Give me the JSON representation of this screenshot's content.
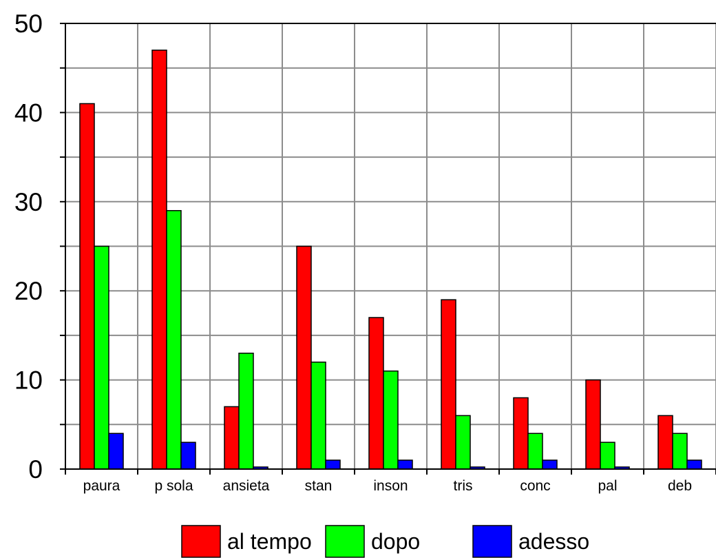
{
  "chart_data": {
    "type": "bar",
    "categories": [
      "paura",
      "p sola",
      "ansieta",
      "stan",
      "inson",
      "tris",
      "conc",
      "pal",
      "deb"
    ],
    "series": [
      {
        "name": "al tempo",
        "color": "#ff0000",
        "values": [
          41,
          47,
          7,
          25,
          17,
          19,
          8,
          10,
          6
        ]
      },
      {
        "name": "dopo",
        "color": "#00ff00",
        "values": [
          25,
          29,
          13,
          12,
          11,
          6,
          4,
          3,
          4
        ]
      },
      {
        "name": "adesso",
        "color": "#0000ff",
        "values": [
          4,
          3,
          0,
          1,
          1,
          0,
          1,
          0,
          1
        ]
      }
    ],
    "ylim": [
      0,
      50
    ],
    "yticks": [
      "0",
      "10",
      "20",
      "30",
      "40",
      "50"
    ],
    "grid": true,
    "legend_position": "bottom"
  }
}
